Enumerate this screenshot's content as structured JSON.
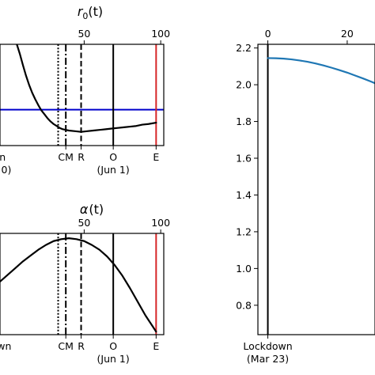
{
  "chart_data": [
    {
      "type": "line",
      "panel": "top-left",
      "title_main": "r",
      "title_sub": "0",
      "title_rest": "(t)",
      "top_ticks": [
        "50",
        "100"
      ],
      "top_tick_values": [
        50,
        100
      ],
      "bottom_labels": [
        {
          "text": "CM",
          "x": 38,
          "line2": ""
        },
        {
          "text": "R",
          "x": 48,
          "line2": ""
        },
        {
          "text": "O",
          "x": 69,
          "line2": "(Jun 1)"
        },
        {
          "text": "E",
          "x": 97,
          "line2": ""
        }
      ],
      "partial_left_labels": [
        "n",
        "0)"
      ],
      "vlines": [
        {
          "x": 33,
          "style": "dotted",
          "color": "#000000"
        },
        {
          "x": 38,
          "style": "dashdot",
          "color": "#000000"
        },
        {
          "x": 48,
          "style": "dashed",
          "color": "#000000"
        },
        {
          "x": 69,
          "style": "solid",
          "color": "#000000"
        },
        {
          "x": 97,
          "style": "solid",
          "color": "#d62728"
        }
      ],
      "hline": {
        "y": 1.0,
        "color": "#0000cc"
      },
      "x_domain": [
        -5,
        102
      ],
      "y_domain": [
        0.45,
        2.0
      ],
      "series": [
        {
          "color": "#000000",
          "x": [
            6,
            8,
            10,
            12,
            14,
            16,
            18,
            20,
            22,
            24,
            26,
            28,
            30,
            32,
            34,
            36,
            38,
            40,
            44,
            48,
            52,
            56,
            60,
            64,
            68,
            72,
            76,
            80,
            84,
            88,
            92,
            97
          ],
          "y": [
            2.0,
            1.85,
            1.68,
            1.52,
            1.38,
            1.26,
            1.16,
            1.07,
            0.99,
            0.93,
            0.87,
            0.82,
            0.78,
            0.75,
            0.72,
            0.7,
            0.69,
            0.68,
            0.67,
            0.66,
            0.67,
            0.68,
            0.69,
            0.7,
            0.71,
            0.72,
            0.73,
            0.74,
            0.75,
            0.77,
            0.78,
            0.8
          ]
        }
      ]
    },
    {
      "type": "line",
      "panel": "bottom-left",
      "title_main": "α",
      "title_rest": "(t)",
      "top_ticks": [
        "50",
        "100"
      ],
      "top_tick_values": [
        50,
        100
      ],
      "bottom_labels": [
        {
          "text": "CM",
          "x": 38,
          "line2": ""
        },
        {
          "text": "R",
          "x": 48,
          "line2": ""
        },
        {
          "text": "O",
          "x": 69,
          "line2": "(Jun 1)"
        },
        {
          "text": "E",
          "x": 97,
          "line2": ""
        }
      ],
      "partial_left_labels": [
        "wn"
      ],
      "vlines": [
        {
          "x": 33,
          "style": "dotted",
          "color": "#000000"
        },
        {
          "x": 38,
          "style": "dashdot",
          "color": "#000000"
        },
        {
          "x": 48,
          "style": "dashed",
          "color": "#000000"
        },
        {
          "x": 69,
          "style": "solid",
          "color": "#000000"
        },
        {
          "x": 97,
          "style": "solid",
          "color": "#d62728"
        }
      ],
      "x_domain": [
        -5,
        102
      ],
      "y_domain": [
        0.0,
        1.05
      ],
      "series": [
        {
          "color": "#000000",
          "x": [
            -5,
            0,
            5,
            10,
            15,
            20,
            25,
            30,
            35,
            40,
            45,
            50,
            55,
            60,
            65,
            70,
            75,
            80,
            85,
            90,
            95,
            97
          ],
          "y": [
            0.55,
            0.62,
            0.69,
            0.76,
            0.82,
            0.88,
            0.93,
            0.97,
            0.99,
            1.0,
            0.99,
            0.97,
            0.93,
            0.88,
            0.81,
            0.72,
            0.61,
            0.48,
            0.34,
            0.2,
            0.08,
            0.03
          ]
        }
      ]
    },
    {
      "type": "line",
      "panel": "right",
      "top_ticks": [
        "0",
        "20"
      ],
      "top_tick_values": [
        0,
        20
      ],
      "y_ticks": [
        "2.2",
        "2.0",
        "1.8",
        "1.6",
        "1.4",
        "1.2",
        "1.0",
        "0.8"
      ],
      "y_tick_values": [
        2.2,
        2.0,
        1.8,
        1.6,
        1.4,
        1.2,
        1.0,
        0.8
      ],
      "bottom_labels": [
        {
          "text": "Lockdown",
          "x": 0,
          "line2": "(Mar 23)"
        }
      ],
      "vlines": [
        {
          "x": 0,
          "style": "solid",
          "color": "#000000"
        }
      ],
      "x_domain": [
        -2.5,
        27
      ],
      "y_domain": [
        0.64,
        2.22
      ],
      "series": [
        {
          "color": "#1f77b4",
          "x": [
            0,
            2,
            4,
            6,
            8,
            10,
            12,
            14,
            16,
            18,
            20,
            22,
            24,
            26,
            27
          ],
          "y": [
            2.145,
            2.144,
            2.142,
            2.138,
            2.132,
            2.125,
            2.116,
            2.105,
            2.093,
            2.08,
            2.066,
            2.05,
            2.034,
            2.017,
            2.008
          ]
        }
      ]
    }
  ]
}
